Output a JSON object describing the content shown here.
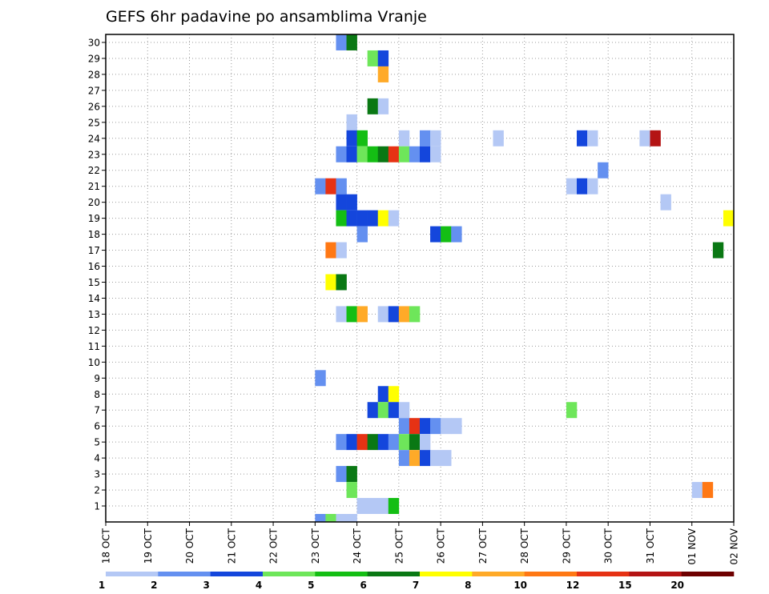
{
  "chart_data": {
    "type": "heatmap",
    "title": "GEFS 6hr padavine po ansamblima Vranje",
    "xlabel": "",
    "ylabel": "",
    "x_ticks": [
      "18 OCT",
      "19 OCT",
      "20 OCT",
      "21 OCT",
      "22 OCT",
      "23 OCT",
      "24 OCT",
      "25 OCT",
      "26 OCT",
      "27 OCT",
      "28 OCT",
      "29 OCT",
      "30 OCT",
      "31 OCT",
      "01 NOV",
      "02 NOV"
    ],
    "y_ticks": [
      "1",
      "2",
      "3",
      "4",
      "5",
      "6",
      "7",
      "8",
      "9",
      "10",
      "11",
      "12",
      "13",
      "14",
      "15",
      "16",
      "17",
      "18",
      "19",
      "20",
      "21",
      "22",
      "23",
      "24",
      "25",
      "26",
      "27",
      "28",
      "29",
      "30"
    ],
    "ylim": [
      0,
      30
    ],
    "grid": true,
    "time_step_hours": 6,
    "legend": {
      "placement": "bottom",
      "labels": [
        "1",
        "2",
        "3",
        "4",
        "5",
        "6",
        "7",
        "8",
        "10",
        "12",
        "15",
        "20"
      ],
      "colors": [
        "#b4c8f5",
        "#6490f0",
        "#1446dc",
        "#6ee65a",
        "#14be14",
        "#0a7814",
        "#ffff00",
        "#ffaa28",
        "#ff7814",
        "#e63214",
        "#b41414",
        "#6e0000"
      ]
    },
    "cells": [
      {
        "x": "2023-10-23 12:00",
        "y": 30,
        "v": 2
      },
      {
        "x": "2023-10-23 18:00",
        "y": 30,
        "v": 6.5
      },
      {
        "x": "2023-10-24 06:00",
        "y": 29,
        "v": 4.5
      },
      {
        "x": "2023-10-24 12:00",
        "y": 29,
        "v": 3
      },
      {
        "x": "2023-10-24 12:00",
        "y": 28,
        "v": 9
      },
      {
        "x": "2023-10-24 06:00",
        "y": 26,
        "v": 6.5
      },
      {
        "x": "2023-10-24 12:00",
        "y": 26,
        "v": 1
      },
      {
        "x": "2023-10-23 18:00",
        "y": 25,
        "v": 1
      },
      {
        "x": "2023-10-23 18:00",
        "y": 24,
        "v": 3
      },
      {
        "x": "2023-10-24 00:00",
        "y": 24,
        "v": 5.5
      },
      {
        "x": "2023-10-25 00:00",
        "y": 24,
        "v": 1
      },
      {
        "x": "2023-10-25 12:00",
        "y": 24,
        "v": 2
      },
      {
        "x": "2023-10-25 18:00",
        "y": 24,
        "v": 1
      },
      {
        "x": "2023-10-27 06:00",
        "y": 24,
        "v": 1
      },
      {
        "x": "2023-10-29 06:00",
        "y": 24,
        "v": 3
      },
      {
        "x": "2023-10-29 12:00",
        "y": 24,
        "v": 1
      },
      {
        "x": "2023-10-30 18:00",
        "y": 24,
        "v": 1
      },
      {
        "x": "2023-10-31 00:00",
        "y": 24,
        "v": 17
      },
      {
        "x": "2023-10-23 12:00",
        "y": 23,
        "v": 2
      },
      {
        "x": "2023-10-23 18:00",
        "y": 23,
        "v": 3
      },
      {
        "x": "2023-10-24 00:00",
        "y": 23,
        "v": 4.5
      },
      {
        "x": "2023-10-24 06:00",
        "y": 23,
        "v": 5.5
      },
      {
        "x": "2023-10-24 12:00",
        "y": 23,
        "v": 6.5
      },
      {
        "x": "2023-10-24 18:00",
        "y": 23,
        "v": 13
      },
      {
        "x": "2023-10-25 00:00",
        "y": 23,
        "v": 4.5
      },
      {
        "x": "2023-10-25 06:00",
        "y": 23,
        "v": 2
      },
      {
        "x": "2023-10-25 12:00",
        "y": 23,
        "v": 3
      },
      {
        "x": "2023-10-25 18:00",
        "y": 23,
        "v": 1
      },
      {
        "x": "2023-10-29 18:00",
        "y": 22,
        "v": 2
      },
      {
        "x": "2023-10-23 00:00",
        "y": 21,
        "v": 2
      },
      {
        "x": "2023-10-23 06:00",
        "y": 21,
        "v": 13
      },
      {
        "x": "2023-10-23 12:00",
        "y": 21,
        "v": 2
      },
      {
        "x": "2023-10-29 00:00",
        "y": 21,
        "v": 1
      },
      {
        "x": "2023-10-29 06:00",
        "y": 21,
        "v": 3
      },
      {
        "x": "2023-10-29 12:00",
        "y": 21,
        "v": 1
      },
      {
        "x": "2023-10-23 12:00",
        "y": 20,
        "v": 3
      },
      {
        "x": "2023-10-23 18:00",
        "y": 20,
        "v": 3
      },
      {
        "x": "2023-10-31 06:00",
        "y": 20,
        "v": 1
      },
      {
        "x": "2023-10-23 12:00",
        "y": 19,
        "v": 5.5
      },
      {
        "x": "2023-10-23 18:00",
        "y": 19,
        "v": 3
      },
      {
        "x": "2023-10-24 00:00",
        "y": 19,
        "v": 3
      },
      {
        "x": "2023-10-24 06:00",
        "y": 19,
        "v": 3
      },
      {
        "x": "2023-10-24 12:00",
        "y": 19,
        "v": 7.5
      },
      {
        "x": "2023-10-24 18:00",
        "y": 19,
        "v": 1
      },
      {
        "x": "2023-11-01 18:00",
        "y": 19,
        "v": 7.5
      },
      {
        "x": "2023-10-24 00:00",
        "y": 18,
        "v": 2
      },
      {
        "x": "2023-10-25 18:00",
        "y": 18,
        "v": 3
      },
      {
        "x": "2023-10-26 00:00",
        "y": 18,
        "v": 5.5
      },
      {
        "x": "2023-10-26 06:00",
        "y": 18,
        "v": 2
      },
      {
        "x": "2023-10-23 06:00",
        "y": 17,
        "v": 11
      },
      {
        "x": "2023-10-23 12:00",
        "y": 17,
        "v": 1
      },
      {
        "x": "2023-11-01 12:00",
        "y": 17,
        "v": 6.5
      },
      {
        "x": "2023-10-23 06:00",
        "y": 15,
        "v": 7.5
      },
      {
        "x": "2023-10-23 12:00",
        "y": 15,
        "v": 6.5
      },
      {
        "x": "2023-10-23 12:00",
        "y": 13,
        "v": 1
      },
      {
        "x": "2023-10-23 18:00",
        "y": 13,
        "v": 5.5
      },
      {
        "x": "2023-10-24 00:00",
        "y": 13,
        "v": 9
      },
      {
        "x": "2023-10-24 12:00",
        "y": 13,
        "v": 1
      },
      {
        "x": "2023-10-24 18:00",
        "y": 13,
        "v": 3
      },
      {
        "x": "2023-10-25 00:00",
        "y": 13,
        "v": 9
      },
      {
        "x": "2023-10-25 06:00",
        "y": 13,
        "v": 4.5
      },
      {
        "x": "2023-10-23 00:00",
        "y": 9,
        "v": 2
      },
      {
        "x": "2023-10-24 12:00",
        "y": 8,
        "v": 3
      },
      {
        "x": "2023-10-24 18:00",
        "y": 8,
        "v": 7.5
      },
      {
        "x": "2023-10-24 06:00",
        "y": 7,
        "v": 3
      },
      {
        "x": "2023-10-24 12:00",
        "y": 7,
        "v": 4.5
      },
      {
        "x": "2023-10-24 18:00",
        "y": 7,
        "v": 3
      },
      {
        "x": "2023-10-25 00:00",
        "y": 7,
        "v": 1
      },
      {
        "x": "2023-10-29 00:00",
        "y": 7,
        "v": 4.5
      },
      {
        "x": "2023-10-25 00:00",
        "y": 6,
        "v": 2
      },
      {
        "x": "2023-10-25 06:00",
        "y": 6,
        "v": 13
      },
      {
        "x": "2023-10-25 12:00",
        "y": 6,
        "v": 3
      },
      {
        "x": "2023-10-25 18:00",
        "y": 6,
        "v": 2
      },
      {
        "x": "2023-10-26 00:00",
        "y": 6,
        "v": 1
      },
      {
        "x": "2023-10-26 06:00",
        "y": 6,
        "v": 1
      },
      {
        "x": "2023-10-23 12:00",
        "y": 5,
        "v": 2
      },
      {
        "x": "2023-10-23 18:00",
        "y": 5,
        "v": 3
      },
      {
        "x": "2023-10-24 00:00",
        "y": 5,
        "v": 13
      },
      {
        "x": "2023-10-24 06:00",
        "y": 5,
        "v": 6.5
      },
      {
        "x": "2023-10-24 12:00",
        "y": 5,
        "v": 3
      },
      {
        "x": "2023-10-24 18:00",
        "y": 5,
        "v": 2
      },
      {
        "x": "2023-10-25 00:00",
        "y": 5,
        "v": 4.5
      },
      {
        "x": "2023-10-25 06:00",
        "y": 5,
        "v": 6.5
      },
      {
        "x": "2023-10-25 12:00",
        "y": 5,
        "v": 1
      },
      {
        "x": "2023-10-25 00:00",
        "y": 4,
        "v": 2
      },
      {
        "x": "2023-10-25 06:00",
        "y": 4,
        "v": 9
      },
      {
        "x": "2023-10-25 12:00",
        "y": 4,
        "v": 3
      },
      {
        "x": "2023-10-25 18:00",
        "y": 4,
        "v": 1
      },
      {
        "x": "2023-10-26 00:00",
        "y": 4,
        "v": 1
      },
      {
        "x": "2023-10-23 12:00",
        "y": 3,
        "v": 2
      },
      {
        "x": "2023-10-23 18:00",
        "y": 3,
        "v": 6.5
      },
      {
        "x": "2023-10-23 18:00",
        "y": 2,
        "v": 4.5
      },
      {
        "x": "2023-11-01 00:00",
        "y": 2,
        "v": 1
      },
      {
        "x": "2023-11-01 06:00",
        "y": 2,
        "v": 11
      },
      {
        "x": "2023-10-24 00:00",
        "y": 1,
        "v": 1
      },
      {
        "x": "2023-10-24 06:00",
        "y": 1,
        "v": 1
      },
      {
        "x": "2023-10-24 12:00",
        "y": 1,
        "v": 1
      },
      {
        "x": "2023-10-24 18:00",
        "y": 1,
        "v": 5.5
      },
      {
        "x": "2023-10-23 00:00",
        "y": 0,
        "v": 2
      },
      {
        "x": "2023-10-23 06:00",
        "y": 0,
        "v": 4.5
      },
      {
        "x": "2023-10-23 12:00",
        "y": 0,
        "v": 1
      },
      {
        "x": "2023-10-23 18:00",
        "y": 0,
        "v": 1
      }
    ]
  }
}
